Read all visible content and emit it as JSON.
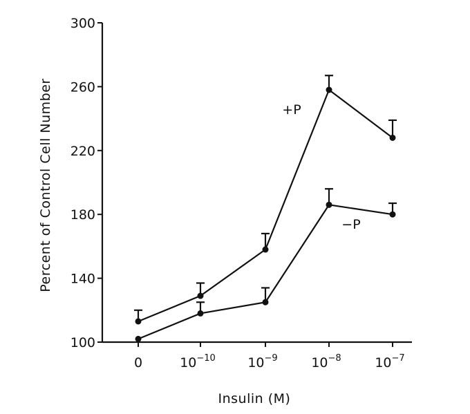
{
  "chart_data": {
    "type": "line",
    "xlabel": "Insulin (M)",
    "ylabel": "Percent of Control Cell Number",
    "ylim": [
      100,
      300
    ],
    "y_ticks": [
      100,
      140,
      180,
      220,
      260,
      300
    ],
    "categories": [
      {
        "base": "0",
        "exp": ""
      },
      {
        "base": "10",
        "exp": "−10"
      },
      {
        "base": "10",
        "exp": "−9"
      },
      {
        "base": "10",
        "exp": "−8"
      },
      {
        "base": "10",
        "exp": "−7"
      }
    ],
    "grid": false,
    "series": [
      {
        "name": "+P",
        "values": [
          113,
          129,
          158,
          258,
          228
        ],
        "errors": [
          7,
          8,
          10,
          9,
          11
        ],
        "label_category_index": 3
      },
      {
        "name": "−P",
        "values": [
          102,
          118,
          125,
          186,
          180
        ],
        "errors": [
          0,
          7,
          9,
          10,
          7
        ],
        "label_category_index": 4
      }
    ]
  }
}
